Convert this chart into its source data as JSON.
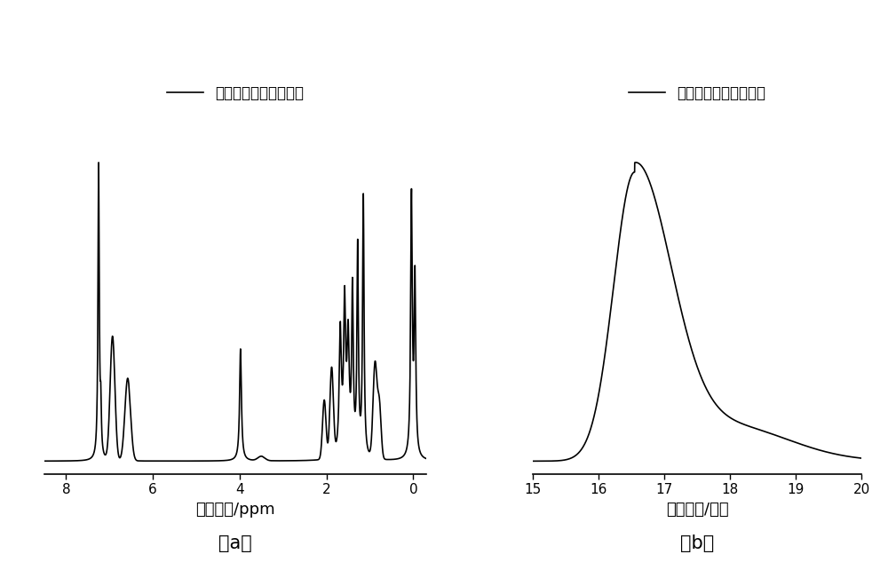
{
  "legend_label": "单硅氢星型嵌段共聚物",
  "panel_a": {
    "xlabel": "化学位移/ppm",
    "subplot_label": "（a）",
    "xticks": [
      8,
      6,
      4,
      2,
      0
    ]
  },
  "panel_b": {
    "xlabel": "流出时间/分钟",
    "subplot_label": "（b）",
    "xticks": [
      15,
      16,
      17,
      18,
      19,
      20
    ]
  },
  "line_color": "#000000",
  "bg_color": "#ffffff",
  "line_width": 1.2,
  "font_size_label": 13,
  "font_size_tick": 11,
  "font_size_legend": 12,
  "font_size_subplot": 15
}
